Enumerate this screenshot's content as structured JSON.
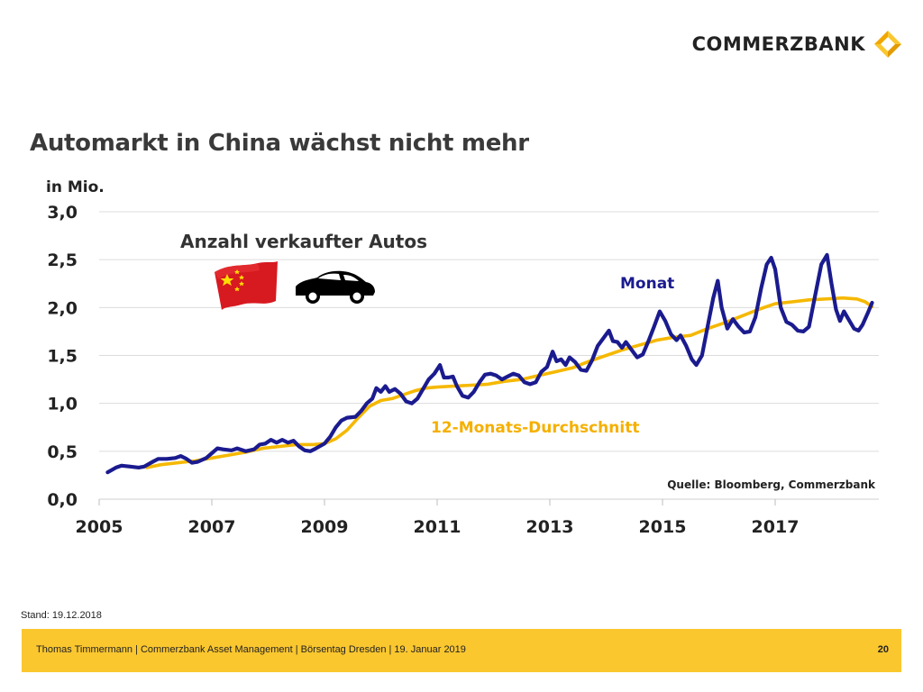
{
  "brand": {
    "name": "COMMERZBANK",
    "accent": "#fbc72f"
  },
  "chart_data": {
    "type": "line",
    "title": "Automarkt in China wächst nicht mehr",
    "subtitle": "Anzahl verkaufter Autos",
    "ylabel": "in Mio.",
    "xlim": [
      2005,
      2018.75
    ],
    "ylim": [
      0,
      3
    ],
    "yticks": [
      "0,0",
      "0,5",
      "1,0",
      "1,5",
      "2,0",
      "2,5",
      "3,0"
    ],
    "ytick_values": [
      0,
      0.5,
      1,
      1.5,
      2,
      2.5,
      3
    ],
    "xticks": [
      "2005",
      "2007",
      "2009",
      "2011",
      "2013",
      "2015",
      "2017"
    ],
    "xtick_values": [
      2005,
      2007,
      2009,
      2011,
      2013,
      2015,
      2017
    ],
    "grid": true,
    "source": "Quelle: Bloomberg, Commerzbank",
    "series": [
      {
        "name": "Monat",
        "color": "#1b1b8f",
        "points": [
          [
            2005.15,
            0.28
          ],
          [
            2005.3,
            0.33
          ],
          [
            2005.4,
            0.35
          ],
          [
            2005.55,
            0.34
          ],
          [
            2005.7,
            0.33
          ],
          [
            2005.8,
            0.34
          ],
          [
            2005.95,
            0.39
          ],
          [
            2006.05,
            0.42
          ],
          [
            2006.2,
            0.42
          ],
          [
            2006.35,
            0.43
          ],
          [
            2006.45,
            0.45
          ],
          [
            2006.55,
            0.42
          ],
          [
            2006.65,
            0.38
          ],
          [
            2006.75,
            0.39
          ],
          [
            2006.9,
            0.43
          ],
          [
            2007.0,
            0.48
          ],
          [
            2007.1,
            0.53
          ],
          [
            2007.2,
            0.52
          ],
          [
            2007.35,
            0.51
          ],
          [
            2007.45,
            0.53
          ],
          [
            2007.6,
            0.5
          ],
          [
            2007.75,
            0.52
          ],
          [
            2007.85,
            0.57
          ],
          [
            2007.95,
            0.58
          ],
          [
            2008.05,
            0.62
          ],
          [
            2008.15,
            0.59
          ],
          [
            2008.25,
            0.62
          ],
          [
            2008.35,
            0.59
          ],
          [
            2008.45,
            0.61
          ],
          [
            2008.55,
            0.55
          ],
          [
            2008.65,
            0.51
          ],
          [
            2008.75,
            0.5
          ],
          [
            2008.85,
            0.53
          ],
          [
            2009.0,
            0.58
          ],
          [
            2009.1,
            0.65
          ],
          [
            2009.2,
            0.75
          ],
          [
            2009.3,
            0.82
          ],
          [
            2009.4,
            0.85
          ],
          [
            2009.55,
            0.86
          ],
          [
            2009.65,
            0.92
          ],
          [
            2009.75,
            1.0
          ],
          [
            2009.85,
            1.05
          ],
          [
            2009.92,
            1.16
          ],
          [
            2010.0,
            1.12
          ],
          [
            2010.08,
            1.18
          ],
          [
            2010.15,
            1.12
          ],
          [
            2010.25,
            1.15
          ],
          [
            2010.35,
            1.1
          ],
          [
            2010.45,
            1.02
          ],
          [
            2010.55,
            1.0
          ],
          [
            2010.65,
            1.05
          ],
          [
            2010.75,
            1.15
          ],
          [
            2010.85,
            1.25
          ],
          [
            2010.95,
            1.31
          ],
          [
            2011.05,
            1.4
          ],
          [
            2011.12,
            1.27
          ],
          [
            2011.2,
            1.27
          ],
          [
            2011.28,
            1.28
          ],
          [
            2011.35,
            1.18
          ],
          [
            2011.45,
            1.08
          ],
          [
            2011.55,
            1.06
          ],
          [
            2011.65,
            1.12
          ],
          [
            2011.75,
            1.22
          ],
          [
            2011.85,
            1.3
          ],
          [
            2011.95,
            1.31
          ],
          [
            2012.05,
            1.29
          ],
          [
            2012.15,
            1.25
          ],
          [
            2012.25,
            1.28
          ],
          [
            2012.35,
            1.31
          ],
          [
            2012.45,
            1.29
          ],
          [
            2012.55,
            1.22
          ],
          [
            2012.65,
            1.2
          ],
          [
            2012.75,
            1.22
          ],
          [
            2012.85,
            1.33
          ],
          [
            2012.95,
            1.38
          ],
          [
            2013.05,
            1.54
          ],
          [
            2013.12,
            1.44
          ],
          [
            2013.2,
            1.46
          ],
          [
            2013.28,
            1.4
          ],
          [
            2013.35,
            1.48
          ],
          [
            2013.45,
            1.43
          ],
          [
            2013.55,
            1.35
          ],
          [
            2013.65,
            1.34
          ],
          [
            2013.75,
            1.45
          ],
          [
            2013.85,
            1.6
          ],
          [
            2013.95,
            1.68
          ],
          [
            2014.05,
            1.76
          ],
          [
            2014.12,
            1.65
          ],
          [
            2014.2,
            1.64
          ],
          [
            2014.28,
            1.58
          ],
          [
            2014.35,
            1.64
          ],
          [
            2014.45,
            1.56
          ],
          [
            2014.55,
            1.48
          ],
          [
            2014.65,
            1.51
          ],
          [
            2014.75,
            1.65
          ],
          [
            2014.85,
            1.8
          ],
          [
            2014.95,
            1.96
          ],
          [
            2015.05,
            1.86
          ],
          [
            2015.15,
            1.72
          ],
          [
            2015.25,
            1.66
          ],
          [
            2015.32,
            1.71
          ],
          [
            2015.42,
            1.6
          ],
          [
            2015.52,
            1.46
          ],
          [
            2015.6,
            1.4
          ],
          [
            2015.7,
            1.5
          ],
          [
            2015.8,
            1.8
          ],
          [
            2015.9,
            2.1
          ],
          [
            2015.98,
            2.28
          ],
          [
            2016.05,
            2.0
          ],
          [
            2016.15,
            1.78
          ],
          [
            2016.25,
            1.88
          ],
          [
            2016.35,
            1.8
          ],
          [
            2016.45,
            1.74
          ],
          [
            2016.55,
            1.75
          ],
          [
            2016.65,
            1.9
          ],
          [
            2016.75,
            2.2
          ],
          [
            2016.85,
            2.45
          ],
          [
            2016.93,
            2.52
          ],
          [
            2017.0,
            2.4
          ],
          [
            2017.1,
            2.0
          ],
          [
            2017.2,
            1.85
          ],
          [
            2017.3,
            1.82
          ],
          [
            2017.4,
            1.76
          ],
          [
            2017.5,
            1.75
          ],
          [
            2017.6,
            1.8
          ],
          [
            2017.7,
            2.1
          ],
          [
            2017.82,
            2.45
          ],
          [
            2017.92,
            2.55
          ],
          [
            2018.0,
            2.25
          ],
          [
            2018.08,
            1.98
          ],
          [
            2018.15,
            1.86
          ],
          [
            2018.22,
            1.96
          ],
          [
            2018.3,
            1.88
          ],
          [
            2018.4,
            1.78
          ],
          [
            2018.48,
            1.76
          ],
          [
            2018.55,
            1.82
          ],
          [
            2018.65,
            1.95
          ],
          [
            2018.72,
            2.05
          ]
        ]
      },
      {
        "name": "12-Monats-Durchschnitt",
        "color": "#f5b800",
        "points": [
          [
            2005.85,
            0.33
          ],
          [
            2006.1,
            0.36
          ],
          [
            2006.4,
            0.38
          ],
          [
            2006.7,
            0.4
          ],
          [
            2007.0,
            0.43
          ],
          [
            2007.3,
            0.46
          ],
          [
            2007.6,
            0.49
          ],
          [
            2007.9,
            0.53
          ],
          [
            2008.2,
            0.55
          ],
          [
            2008.5,
            0.57
          ],
          [
            2008.8,
            0.57
          ],
          [
            2009.0,
            0.58
          ],
          [
            2009.2,
            0.63
          ],
          [
            2009.4,
            0.72
          ],
          [
            2009.6,
            0.85
          ],
          [
            2009.8,
            0.97
          ],
          [
            2010.0,
            1.03
          ],
          [
            2010.2,
            1.05
          ],
          [
            2010.4,
            1.09
          ],
          [
            2010.6,
            1.13
          ],
          [
            2010.8,
            1.16
          ],
          [
            2011.0,
            1.17
          ],
          [
            2011.3,
            1.18
          ],
          [
            2011.6,
            1.19
          ],
          [
            2011.9,
            1.2
          ],
          [
            2012.2,
            1.23
          ],
          [
            2012.5,
            1.25
          ],
          [
            2012.8,
            1.29
          ],
          [
            2013.1,
            1.33
          ],
          [
            2013.4,
            1.37
          ],
          [
            2013.7,
            1.44
          ],
          [
            2014.0,
            1.5
          ],
          [
            2014.3,
            1.56
          ],
          [
            2014.6,
            1.61
          ],
          [
            2014.9,
            1.66
          ],
          [
            2015.2,
            1.69
          ],
          [
            2015.5,
            1.71
          ],
          [
            2015.8,
            1.78
          ],
          [
            2016.1,
            1.84
          ],
          [
            2016.4,
            1.91
          ],
          [
            2016.7,
            1.98
          ],
          [
            2017.0,
            2.04
          ],
          [
            2017.3,
            2.06
          ],
          [
            2017.6,
            2.08
          ],
          [
            2017.9,
            2.09
          ],
          [
            2018.2,
            2.1
          ],
          [
            2018.45,
            2.09
          ],
          [
            2018.6,
            2.06
          ],
          [
            2018.72,
            2.01
          ]
        ]
      }
    ]
  },
  "annotations": {
    "monat": "Monat",
    "durchschnitt": "12-Monats-Durchschnitt"
  },
  "stand": "Stand: 19.12.2018",
  "footer": {
    "text": "Thomas Timmermann | Commerzbank Asset Management | Börsentag Dresden | 19. Januar 2019",
    "page": "20"
  }
}
